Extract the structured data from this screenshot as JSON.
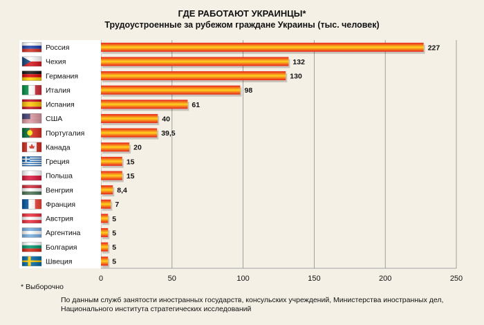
{
  "header": {
    "title": "ГДЕ РАБОТАЮТ УКРАИНЦЫ*",
    "subtitle": "Трудоустроенные за рубежом граждане Украины (тыс. человек)"
  },
  "footnote": "* Выборочно",
  "source": {
    "line1": "По данным служб занятости иностранных государств, консульских учреждений, Министерства иностранных дел,",
    "line2": "Национального института стратегических исследований"
  },
  "chart_data": {
    "type": "bar",
    "orientation": "horizontal",
    "title": "ГДЕ РАБОТАЮТ УКРАИНЦЫ*",
    "subtitle": "Трудоустроенные за рубежом граждане Украины (тыс. человек)",
    "xlim": [
      0,
      250
    ],
    "x_ticks": [
      "0",
      "50",
      "100",
      "150",
      "200",
      "250"
    ],
    "x_tick_values": [
      0,
      50,
      100,
      150,
      200,
      250
    ],
    "grid": "vertical",
    "categories": [
      "Россия",
      "Чехия",
      "Германия",
      "Италия",
      "Испания",
      "США",
      "Португалия",
      "Канада",
      "Греция",
      "Польша",
      "Венгрия",
      "Франция",
      "Австрия",
      "Аргентина",
      "Болгария",
      "Швеция"
    ],
    "values": [
      227,
      132,
      130,
      98,
      61,
      40,
      39.5,
      20,
      15,
      15,
      8.4,
      7,
      5,
      5,
      5,
      5
    ],
    "value_labels": [
      "227",
      "132",
      "130",
      "98",
      "61",
      "40",
      "39,5",
      "20",
      "15",
      "15",
      "8,4",
      "7",
      "5",
      "5",
      "5",
      "5"
    ],
    "flag_icons": [
      "flag-russia-icon",
      "flag-czechia-icon",
      "flag-germany-icon",
      "flag-italy-icon",
      "flag-spain-icon",
      "flag-usa-icon",
      "flag-portugal-icon",
      "flag-canada-icon",
      "flag-greece-icon",
      "flag-poland-icon",
      "flag-hungary-icon",
      "flag-france-icon",
      "flag-austria-icon",
      "flag-argentina-icon",
      "flag-bulgaria-icon",
      "flag-sweden-icon"
    ],
    "colors": {
      "bar_edge": "#e8231c",
      "bar_center": "#ffd21e",
      "label_panel": "#ffffff",
      "background": "#f4f0e6"
    }
  }
}
